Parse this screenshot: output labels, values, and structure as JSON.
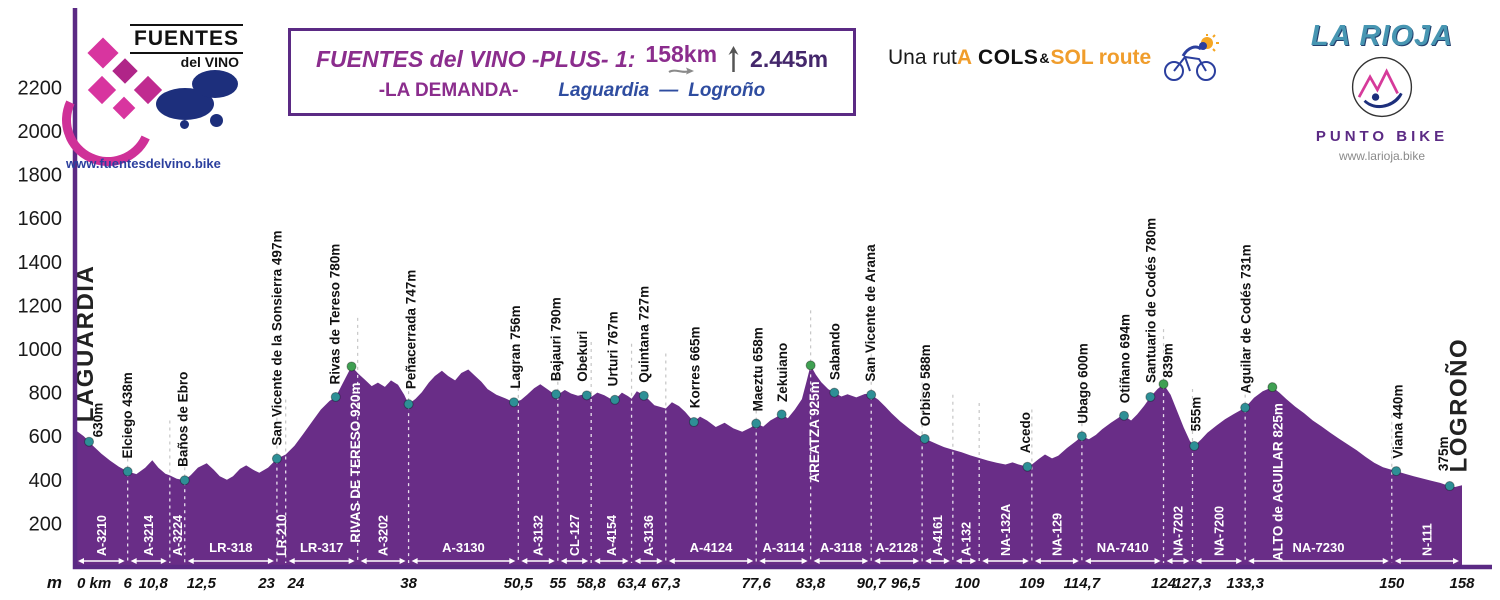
{
  "branding": {
    "fuentes": {
      "name1": "FUENTES",
      "name2": "del",
      "name3": "VINO",
      "url": "www.fuentesdelvino.bike"
    },
    "rioja": {
      "title": "LA RIOJA",
      "subtitle": "PUNTO BIKE",
      "url": "www.larioja.bike"
    }
  },
  "title_box": {
    "name": "FUENTES del VINO -PLUS- 1:",
    "distance": "158km",
    "climb": "2.445m",
    "subtitle": "-LA DEMANDA-",
    "start": "Laguardia",
    "separator": "—",
    "end": "Logroño"
  },
  "route_tag": {
    "p1": "Una rut",
    "p2": "A",
    "p3": "COLS",
    "amp": "&",
    "p4": "SOL",
    "p5": "route"
  },
  "chart_data": {
    "type": "area",
    "title": "FUENTES del VINO -PLUS- 1 · LA DEMANDA · Laguardia — Logroño",
    "xlabel": "km",
    "ylabel": "m",
    "xlim": [
      0,
      158
    ],
    "ylim": [
      0,
      2300
    ],
    "distance_km": 158,
    "total_climb_m": 2445,
    "y_ticks": [
      200,
      400,
      600,
      800,
      1000,
      1200,
      1400,
      1600,
      1800,
      2000,
      2200
    ],
    "colors": {
      "profile": "#692d87",
      "axis": "#5b2a84",
      "dot": "#2e8f96",
      "peak_dot": "#3fa052"
    },
    "profile": [
      [
        0,
        630
      ],
      [
        1,
        600
      ],
      [
        2,
        558
      ],
      [
        3,
        520
      ],
      [
        4,
        488
      ],
      [
        5,
        460
      ],
      [
        6,
        438
      ],
      [
        7,
        426
      ],
      [
        8,
        455
      ],
      [
        8.8,
        490
      ],
      [
        9.5,
        455
      ],
      [
        10.3,
        428
      ],
      [
        10.8,
        420
      ],
      [
        11.6,
        405
      ],
      [
        12.5,
        398
      ],
      [
        13.2,
        422
      ],
      [
        14,
        456
      ],
      [
        15,
        476
      ],
      [
        15.8,
        446
      ],
      [
        16.5,
        416
      ],
      [
        17.3,
        400
      ],
      [
        18,
        416
      ],
      [
        18.8,
        450
      ],
      [
        19.5,
        466
      ],
      [
        20.3,
        446
      ],
      [
        21,
        432
      ],
      [
        22,
        456
      ],
      [
        23,
        497
      ],
      [
        24,
        516
      ],
      [
        25,
        556
      ],
      [
        26,
        610
      ],
      [
        27,
        666
      ],
      [
        28,
        722
      ],
      [
        29,
        762
      ],
      [
        29.7,
        780
      ],
      [
        30.5,
        842
      ],
      [
        31.5,
        920
      ],
      [
        32.3,
        886
      ],
      [
        33,
        860
      ],
      [
        33.8,
        830
      ],
      [
        34.5,
        846
      ],
      [
        35.3,
        826
      ],
      [
        36,
        856
      ],
      [
        36.8,
        836
      ],
      [
        37.5,
        790
      ],
      [
        38,
        747
      ],
      [
        38.8,
        772
      ],
      [
        39.5,
        802
      ],
      [
        40.3,
        846
      ],
      [
        41,
        876
      ],
      [
        41.8,
        900
      ],
      [
        42.5,
        876
      ],
      [
        43.3,
        856
      ],
      [
        44,
        890
      ],
      [
        44.8,
        906
      ],
      [
        45.5,
        880
      ],
      [
        46.3,
        850
      ],
      [
        47,
        816
      ],
      [
        48,
        790
      ],
      [
        49,
        774
      ],
      [
        50,
        756
      ],
      [
        50.8,
        766
      ],
      [
        51.5,
        790
      ],
      [
        52.3,
        820
      ],
      [
        53,
        838
      ],
      [
        53.8,
        816
      ],
      [
        54.5,
        796
      ],
      [
        55,
        790
      ],
      [
        55.8,
        812
      ],
      [
        56.5,
        796
      ],
      [
        57.3,
        786
      ],
      [
        58,
        792
      ],
      [
        58.8,
        780
      ],
      [
        59.5,
        800
      ],
      [
        60.3,
        788
      ],
      [
        61,
        772
      ],
      [
        61.5,
        767
      ],
      [
        62.3,
        800
      ],
      [
        63,
        784
      ],
      [
        63.4,
        772
      ],
      [
        64,
        806
      ],
      [
        64.6,
        792
      ],
      [
        65.3,
        770
      ],
      [
        66,
        742
      ],
      [
        67.3,
        727
      ],
      [
        68,
        756
      ],
      [
        68.8,
        738
      ],
      [
        69.5,
        712
      ],
      [
        70.5,
        665
      ],
      [
        71.2,
        690
      ],
      [
        72,
        672
      ],
      [
        73,
        642
      ],
      [
        74,
        662
      ],
      [
        75,
        636
      ],
      [
        76,
        620
      ],
      [
        77,
        640
      ],
      [
        77.6,
        658
      ],
      [
        78.4,
        644
      ],
      [
        79.2,
        672
      ],
      [
        80,
        690
      ],
      [
        80.5,
        700
      ],
      [
        81.2,
        682
      ],
      [
        82,
        722
      ],
      [
        82.8,
        770
      ],
      [
        83.3,
        845
      ],
      [
        83.8,
        925
      ],
      [
        84.4,
        882
      ],
      [
        85,
        848
      ],
      [
        85.8,
        816
      ],
      [
        86.5,
        800
      ],
      [
        87.3,
        782
      ],
      [
        88,
        792
      ],
      [
        89,
        778
      ],
      [
        90,
        794
      ],
      [
        90.7,
        790
      ],
      [
        91.5,
        768
      ],
      [
        92.3,
        736
      ],
      [
        93,
        706
      ],
      [
        94,
        668
      ],
      [
        95,
        636
      ],
      [
        96,
        606
      ],
      [
        96.8,
        588
      ],
      [
        97.5,
        576
      ],
      [
        98.3,
        562
      ],
      [
        99,
        550
      ],
      [
        100,
        538
      ],
      [
        101,
        526
      ],
      [
        102,
        512
      ],
      [
        103,
        500
      ],
      [
        104,
        488
      ],
      [
        105,
        478
      ],
      [
        106,
        470
      ],
      [
        106.8,
        480
      ],
      [
        107.5,
        470
      ],
      [
        108.5,
        460
      ],
      [
        109,
        470
      ],
      [
        109.8,
        496
      ],
      [
        110.5,
        516
      ],
      [
        111.3,
        498
      ],
      [
        112,
        510
      ],
      [
        113,
        546
      ],
      [
        114,
        576
      ],
      [
        114.7,
        600
      ],
      [
        115.5,
        586
      ],
      [
        116.3,
        606
      ],
      [
        117,
        632
      ],
      [
        118,
        662
      ],
      [
        119,
        688
      ],
      [
        119.5,
        694
      ],
      [
        120.3,
        672
      ],
      [
        121,
        700
      ],
      [
        121.8,
        740
      ],
      [
        122.5,
        780
      ],
      [
        123.3,
        816
      ],
      [
        124,
        839
      ],
      [
        124.8,
        790
      ],
      [
        125.5,
        720
      ],
      [
        126.3,
        640
      ],
      [
        127,
        578
      ],
      [
        127.5,
        555
      ],
      [
        128.3,
        586
      ],
      [
        129,
        616
      ],
      [
        130,
        648
      ],
      [
        131,
        678
      ],
      [
        132,
        702
      ],
      [
        133.3,
        731
      ],
      [
        134.3,
        776
      ],
      [
        135.3,
        806
      ],
      [
        136.4,
        825
      ],
      [
        137.2,
        800
      ],
      [
        138,
        770
      ],
      [
        139,
        736
      ],
      [
        140,
        706
      ],
      [
        141,
        672
      ],
      [
        142,
        645
      ],
      [
        143,
        616
      ],
      [
        144,
        588
      ],
      [
        145,
        562
      ],
      [
        146,
        536
      ],
      [
        147,
        506
      ],
      [
        148,
        478
      ],
      [
        149,
        458
      ],
      [
        150.5,
        440
      ],
      [
        151.5,
        428
      ],
      [
        152.5,
        416
      ],
      [
        153.5,
        406
      ],
      [
        154.5,
        396
      ],
      [
        155.5,
        386
      ],
      [
        156.5,
        372
      ],
      [
        157.2,
        367
      ],
      [
        158,
        375
      ]
    ],
    "waypoints": [
      {
        "km": 1.0,
        "label": "LAGUARDIA",
        "style": "terminal",
        "dot_km": 1.6
      },
      {
        "km": 2.6,
        "label": "630m",
        "dot": "none"
      },
      {
        "km": 6,
        "label": "Elciego 438m"
      },
      {
        "km": 12.3,
        "label": "Baños de Ebro",
        "dot_km": 12.5
      },
      {
        "km": 23,
        "label": "San Vicente de la Sonsierra 497m"
      },
      {
        "km": 29.6,
        "label": "Rivas de Tereso 780m",
        "dot_km": 29.7
      },
      {
        "km": 31.9,
        "label": "RIVAS DE TERESO 920m",
        "style": "peak",
        "dot": "peak",
        "dot_km": 31.5
      },
      {
        "km": 38.3,
        "label": "Peñacerrada 747m",
        "dot_km": 38
      },
      {
        "km": 50.2,
        "label": "Lagran 756m",
        "dot_km": 50
      },
      {
        "km": 54.8,
        "label": "Bajauri 790m"
      },
      {
        "km": 57.8,
        "label": "Obekuri",
        "dot_km": 58.3
      },
      {
        "km": 61.3,
        "label": "Urturi 767m",
        "dot_km": 61.5
      },
      {
        "km": 64.8,
        "label": "Quintana 727m"
      },
      {
        "km": 70.6,
        "label": "Korres 665m",
        "dot_km": 70.5
      },
      {
        "km": 77.8,
        "label": "Maeztu 658m",
        "dot_km": 77.6
      },
      {
        "km": 80.6,
        "label": "Zekuiano",
        "dot_km": 80.5
      },
      {
        "km": 84.2,
        "label": "AREATZA 925m",
        "style": "peak",
        "dot": "peak",
        "dot_km": 83.8
      },
      {
        "km": 86.6,
        "label": "Sabando",
        "dot_km": 86.5
      },
      {
        "km": 90.6,
        "label": "San Vicente de Arana",
        "dot_km": 90.7
      },
      {
        "km": 96.9,
        "label": "Orbiso 588m",
        "dot_km": 96.8
      },
      {
        "km": 108.3,
        "label": "Acedo",
        "dot_km": 108.5
      },
      {
        "km": 114.8,
        "label": "Ubago 600m",
        "dot_km": 114.7
      },
      {
        "km": 119.6,
        "label": "Otiñano 694m",
        "dot_km": 119.5
      },
      {
        "km": 122.6,
        "label": "Santuario de Codés 780m",
        "dot_km": 122.5
      },
      {
        "km": 124.5,
        "label": "839m",
        "dot": "peak",
        "dot_km": 124
      },
      {
        "km": 127.7,
        "label": "555m",
        "dot_km": 127.5
      },
      {
        "km": 133.4,
        "label": "Aguilar de Codés 731m",
        "dot_km": 133.3
      },
      {
        "km": 137.0,
        "label": "ALTO de AGUILAR 825m",
        "style": "peak",
        "dot": "peak",
        "dot_km": 136.4
      },
      {
        "km": 150.7,
        "label": "Viana 440m",
        "dot_km": 150.5
      },
      {
        "km": 155.9,
        "label": "375m",
        "dot": "none"
      },
      {
        "km": 157.5,
        "label": "LOGROÑO",
        "style": "terminal",
        "dot_km": 156.6
      }
    ],
    "km_ticks": [
      {
        "km": 0,
        "label": "0 km",
        "anchor": "start"
      },
      {
        "km": 6,
        "label": "6"
      },
      {
        "km": 10.8,
        "label": "10,8",
        "anchor": "end"
      },
      {
        "km": 12.5,
        "label": "12,5",
        "anchor": "start"
      },
      {
        "km": 23,
        "label": "23",
        "anchor": "end"
      },
      {
        "km": 24,
        "label": "24",
        "anchor": "start"
      },
      {
        "km": 38,
        "label": "38"
      },
      {
        "km": 50.5,
        "label": "50,5"
      },
      {
        "km": 55,
        "label": "55"
      },
      {
        "km": 58.8,
        "label": "58,8"
      },
      {
        "km": 63.4,
        "label": "63,4"
      },
      {
        "km": 67.3,
        "label": "67,3"
      },
      {
        "km": 77.6,
        "label": "77,6"
      },
      {
        "km": 83.8,
        "label": "83,8"
      },
      {
        "km": 90.7,
        "label": "90,7"
      },
      {
        "km": 96.5,
        "label": "96,5",
        "anchor": "end"
      },
      {
        "km": 100,
        "label": "100",
        "anchor": "start"
      },
      {
        "km": 109,
        "label": "109"
      },
      {
        "km": 114.7,
        "label": "114,7"
      },
      {
        "km": 124,
        "label": "124"
      },
      {
        "km": 127.3,
        "label": "127,3"
      },
      {
        "km": 133.3,
        "label": "133,3"
      },
      {
        "km": 150,
        "label": "150"
      },
      {
        "km": 158,
        "label": "158"
      }
    ],
    "extra_boundaries": [
      32.2,
      103
    ],
    "road_segments": [
      {
        "label": "A-3210",
        "from": 0,
        "to": 6,
        "orient": "v"
      },
      {
        "label": "A-3214",
        "from": 6,
        "to": 10.8,
        "orient": "v"
      },
      {
        "label": "A-3224",
        "from": 10.8,
        "to": 12.5,
        "orient": "v"
      },
      {
        "label": "LR-318",
        "from": 12.5,
        "to": 23,
        "orient": "h"
      },
      {
        "label": "LR-210",
        "from": 23,
        "to": 24,
        "orient": "v"
      },
      {
        "label": "LR-317",
        "from": 24,
        "to": 32.2,
        "orient": "h"
      },
      {
        "label": "A-3202",
        "from": 32.2,
        "to": 38,
        "orient": "v"
      },
      {
        "label": "A-3130",
        "from": 38,
        "to": 50.5,
        "orient": "h"
      },
      {
        "label": "A-3132",
        "from": 50.5,
        "to": 55,
        "orient": "v"
      },
      {
        "label": "CL-127",
        "from": 55,
        "to": 58.8,
        "orient": "v"
      },
      {
        "label": "A-4154",
        "from": 58.8,
        "to": 63.4,
        "orient": "v"
      },
      {
        "label": "A-3136",
        "from": 63.4,
        "to": 67.3,
        "orient": "v"
      },
      {
        "label": "A-4124",
        "from": 67.3,
        "to": 77.6,
        "orient": "h"
      },
      {
        "label": "A-3114",
        "from": 77.6,
        "to": 83.8,
        "orient": "h"
      },
      {
        "label": "A-3118",
        "from": 83.8,
        "to": 90.7,
        "orient": "h"
      },
      {
        "label": "A-2128",
        "from": 90.7,
        "to": 96.5,
        "orient": "h"
      },
      {
        "label": "A-4161",
        "from": 96.5,
        "to": 100,
        "orient": "v"
      },
      {
        "label": "A-132",
        "from": 100,
        "to": 103,
        "orient": "v"
      },
      {
        "label": "NA-132A",
        "from": 103,
        "to": 109,
        "orient": "v"
      },
      {
        "label": "NA-129",
        "from": 109,
        "to": 114.7,
        "orient": "v"
      },
      {
        "label": "NA-7410",
        "from": 114.7,
        "to": 124,
        "orient": "h"
      },
      {
        "label": "NA-7202",
        "from": 124,
        "to": 127.3,
        "orient": "v"
      },
      {
        "label": "NA-7200",
        "from": 127.3,
        "to": 133.3,
        "orient": "v"
      },
      {
        "label": "NA-7230",
        "from": 133.3,
        "to": 150,
        "orient": "h"
      },
      {
        "label": "N-111",
        "from": 150,
        "to": 158,
        "orient": "v"
      }
    ]
  }
}
